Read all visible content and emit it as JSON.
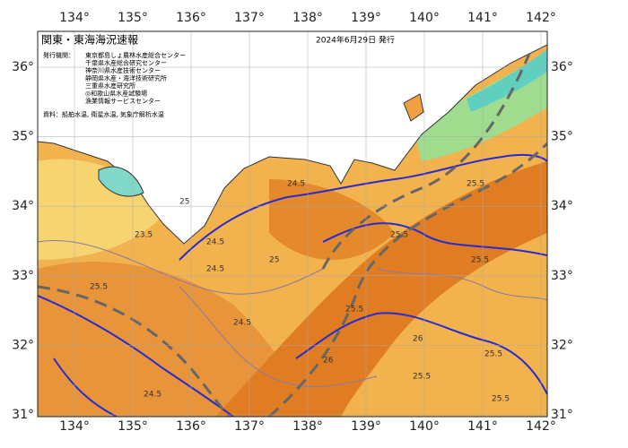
{
  "header": {
    "title": "関東・東海海況速報",
    "date": "2024年6月29日 発行"
  },
  "issuers": {
    "label": "発行機関：",
    "names": [
      "東京都島しょ農林水産総合センター",
      "千葉県水産総合研究センター",
      "神奈川県水産技術センター",
      "静岡県水産・海洋技術研究所",
      "三重県水産研究所",
      "◎和歌山県水産試験場",
      "漁業情報サービスセンター"
    ]
  },
  "source": "資料：船舶水温, 衛星水温, 気象庁解析水温",
  "axes": {
    "lon_ticks": [
      {
        "value": 134,
        "label": "134°"
      },
      {
        "value": 135,
        "label": "135°"
      },
      {
        "value": 136,
        "label": "136°"
      },
      {
        "value": 137,
        "label": "137°"
      },
      {
        "value": 138,
        "label": "138°"
      },
      {
        "value": 139,
        "label": "139°"
      },
      {
        "value": 140,
        "label": "140°"
      },
      {
        "value": 141,
        "label": "141°"
      },
      {
        "value": 142,
        "label": "142°"
      }
    ],
    "lat_ticks": [
      {
        "value": 31,
        "label": "31°"
      },
      {
        "value": 32,
        "label": "32°"
      },
      {
        "value": 33,
        "label": "33°"
      },
      {
        "value": 34,
        "label": "34°"
      },
      {
        "value": 35,
        "label": "35°"
      },
      {
        "value": 36,
        "label": "36°"
      }
    ]
  },
  "contour_labels": [
    "24.5",
    "25.5",
    "23.5",
    "24.5",
    "24.5",
    "25",
    "24.5",
    "26",
    "25.5",
    "25.5",
    "25.5",
    "26",
    "25.5",
    "24.5",
    "25.5",
    "25.5",
    "25",
    "25.5"
  ]
}
